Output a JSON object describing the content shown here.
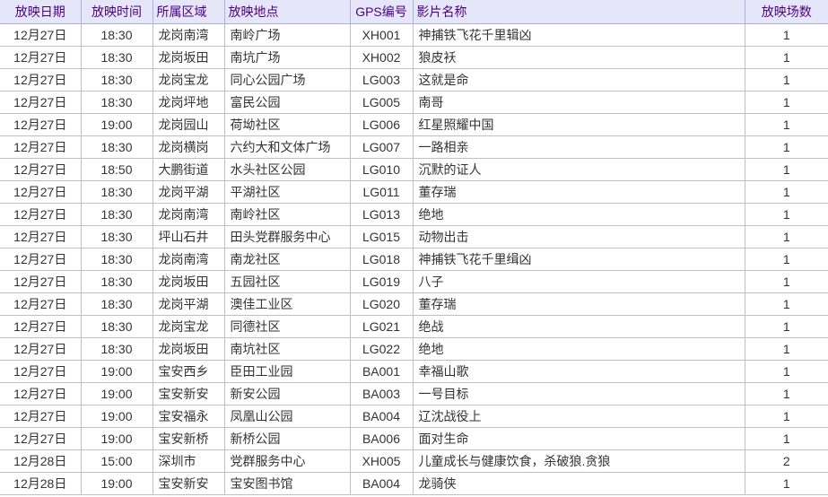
{
  "table": {
    "columns": [
      {
        "key": "date",
        "label": "放映日期",
        "class": "c-date"
      },
      {
        "key": "time",
        "label": "放映时间",
        "class": "c-time"
      },
      {
        "key": "area",
        "label": "所属区域",
        "class": "c-area"
      },
      {
        "key": "venue",
        "label": "放映地点",
        "class": "c-venue"
      },
      {
        "key": "gps",
        "label": "GPS编号",
        "class": "c-gps"
      },
      {
        "key": "title",
        "label": "影片名称",
        "class": "c-title"
      },
      {
        "key": "count",
        "label": "放映场数",
        "class": "c-count"
      }
    ],
    "rows": [
      {
        "date": "12月27日",
        "time": "18:30",
        "area": "龙岗南湾",
        "venue": "南岭广场",
        "gps": "XH001",
        "title": "神捕铁飞花千里辑凶",
        "count": "1"
      },
      {
        "date": "12月27日",
        "time": "18:30",
        "area": "龙岗坂田",
        "venue": "南坑广场",
        "gps": "XH002",
        "title": "狼皮袄",
        "count": "1"
      },
      {
        "date": "12月27日",
        "time": "18:30",
        "area": "龙岗宝龙",
        "venue": "同心公园广场",
        "gps": "LG003",
        "title": "这就是命",
        "count": "1"
      },
      {
        "date": "12月27日",
        "time": "18:30",
        "area": "龙岗坪地",
        "venue": "富民公园",
        "gps": "LG005",
        "title": "南哥",
        "count": "1"
      },
      {
        "date": "12月27日",
        "time": "19:00",
        "area": "龙岗园山",
        "venue": "荷坳社区",
        "gps": "LG006",
        "title": "红星照耀中国",
        "count": "1"
      },
      {
        "date": "12月27日",
        "time": "18:30",
        "area": "龙岗横岗",
        "venue": "六约大和文体广场",
        "gps": "LG007",
        "title": "一路相亲",
        "count": "1"
      },
      {
        "date": "12月27日",
        "time": "18:50",
        "area": "大鹏街道",
        "venue": "水头社区公园",
        "gps": "LG010",
        "title": "沉默的证人",
        "count": "1"
      },
      {
        "date": "12月27日",
        "time": "18:30",
        "area": "龙岗平湖",
        "venue": "平湖社区",
        "gps": "LG011",
        "title": "董存瑞",
        "count": "1"
      },
      {
        "date": "12月27日",
        "time": "18:30",
        "area": "龙岗南湾",
        "venue": "南岭社区",
        "gps": "LG013",
        "title": "绝地",
        "count": "1"
      },
      {
        "date": "12月27日",
        "time": "18:30",
        "area": "坪山石井",
        "venue": "田头党群服务中心",
        "gps": "LG015",
        "title": "动物出击",
        "count": "1"
      },
      {
        "date": "12月27日",
        "time": "18:30",
        "area": "龙岗南湾",
        "venue": "南龙社区",
        "gps": "LG018",
        "title": "神捕铁飞花千里缉凶",
        "count": "1"
      },
      {
        "date": "12月27日",
        "time": "18:30",
        "area": "龙岗坂田",
        "venue": "五园社区",
        "gps": "LG019",
        "title": "八子",
        "count": "1"
      },
      {
        "date": "12月27日",
        "time": "18:30",
        "area": "龙岗平湖",
        "venue": "澳佳工业区",
        "gps": "LG020",
        "title": "董存瑞",
        "count": "1"
      },
      {
        "date": "12月27日",
        "time": "18:30",
        "area": "龙岗宝龙",
        "venue": "同德社区",
        "gps": "LG021",
        "title": "绝战",
        "count": "1"
      },
      {
        "date": "12月27日",
        "time": "18:30",
        "area": "龙岗坂田",
        "venue": "南坑社区",
        "gps": "LG022",
        "title": "绝地",
        "count": "1"
      },
      {
        "date": "12月27日",
        "time": "19:00",
        "area": "宝安西乡",
        "venue": "臣田工业园",
        "gps": "BA001",
        "title": "幸福山歌",
        "count": "1"
      },
      {
        "date": "12月27日",
        "time": "19:00",
        "area": "宝安新安",
        "venue": "新安公园",
        "gps": "BA003",
        "title": "一号目标",
        "count": "1"
      },
      {
        "date": "12月27日",
        "time": "19:00",
        "area": "宝安福永",
        "venue": "凤凰山公园",
        "gps": "BA004",
        "title": "辽沈战役上",
        "count": "1"
      },
      {
        "date": "12月27日",
        "time": "19:00",
        "area": "宝安新桥",
        "venue": "新桥公园",
        "gps": "BA006",
        "title": "面对生命",
        "count": "1"
      },
      {
        "date": "12月28日",
        "time": "15:00",
        "area": "深圳市",
        "venue": "党群服务中心",
        "gps": "XH005",
        "title": "儿童成长与健康饮食，杀破狼.贪狼",
        "count": "2"
      },
      {
        "date": "12月28日",
        "time": "19:00",
        "area": "宝安新安",
        "venue": "宝安图书馆",
        "gps": "BA004",
        "title": "龙骑侠",
        "count": "1"
      }
    ],
    "header_bg": "#e6e6fa",
    "header_fg": "#4b0082",
    "border_color": "#c0c0c0",
    "font_size": 14
  }
}
